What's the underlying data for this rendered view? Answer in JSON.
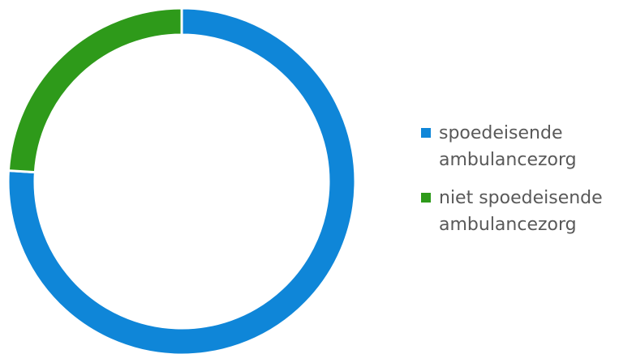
{
  "chart_data": {
    "type": "pie",
    "donut": true,
    "title": "",
    "legend_position": "right",
    "series": [
      {
        "name": "",
        "categories": [
          "spoedeisende ambulancezorg",
          "niet spoedeisende ambulancezorg"
        ],
        "values": [
          76,
          24
        ],
        "colors": [
          "#0F86D8",
          "#2E9A1A"
        ]
      }
    ]
  }
}
